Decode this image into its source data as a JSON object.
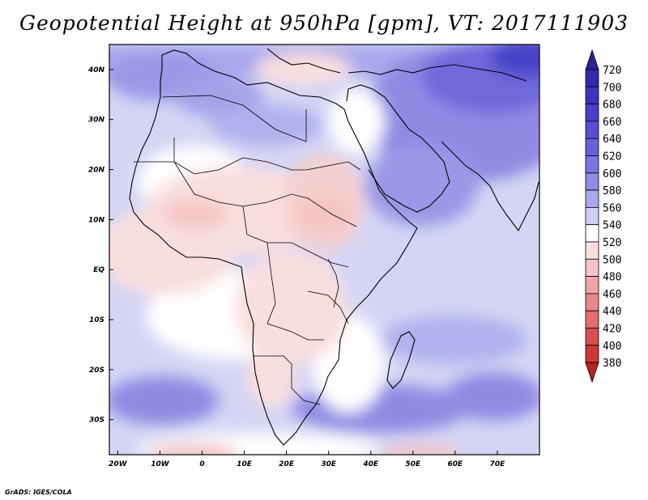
{
  "title": "Geopotential Height at 950hPa [gpm], VT: 2017111903",
  "credit": "GrADS: IGES/COLA",
  "map": {
    "lat_labels": [
      "40N",
      "30N",
      "20N",
      "10N",
      "EQ",
      "10S",
      "20S",
      "30S"
    ],
    "lon_labels": [
      "20W",
      "10W",
      "0",
      "10E",
      "20E",
      "30E",
      "40E",
      "50E",
      "60E",
      "70E"
    ],
    "lon_range": [
      -22,
      80
    ],
    "lat_range": [
      -37,
      45
    ]
  },
  "colorbar": {
    "levels": [
      "720",
      "700",
      "680",
      "660",
      "640",
      "620",
      "600",
      "580",
      "560",
      "540",
      "520",
      "500",
      "480",
      "460",
      "440",
      "420",
      "400",
      "380"
    ],
    "colors": [
      "#2a2298",
      "#3329ad",
      "#3c33bd",
      "#4840c9",
      "#5750d2",
      "#6761d9",
      "#7a75df",
      "#908ce4",
      "#aaa8eb",
      "#cccdf3",
      "#ffffff",
      "#f9dede",
      "#f5c5c5",
      "#f0a6a6",
      "#e98888",
      "#e26d6d",
      "#d94f4f",
      "#cc3636",
      "#b82222"
    ]
  }
}
